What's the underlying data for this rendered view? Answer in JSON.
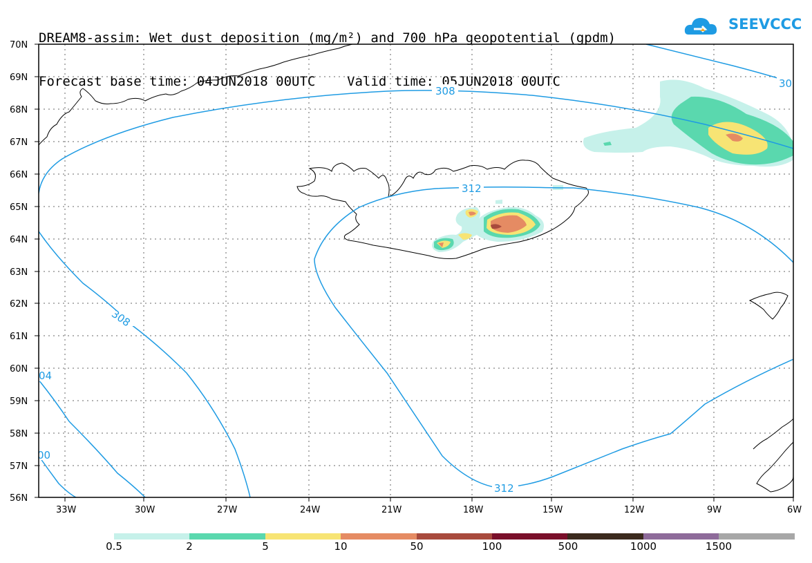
{
  "title": {
    "line1": "DREAM8-assim: Wet dust deposition (mg/m²) and 700 hPa geopotential (gpdm)",
    "line2": "Forecast base time: 04JUN2018 00UTC    Valid time: 05JUN2018 00UTC"
  },
  "logo": {
    "text": "SEEVCCC",
    "icon": "cloud-arrow-icon",
    "color": "#1e9be3"
  },
  "map": {
    "lat_labels": [
      "70N",
      "69N",
      "68N",
      "67N",
      "66N",
      "65N",
      "64N",
      "63N",
      "62N",
      "61N",
      "60N",
      "59N",
      "58N",
      "57N",
      "56N"
    ],
    "lon_labels": [
      "33W",
      "30W",
      "27W",
      "24W",
      "21W",
      "18W",
      "15W",
      "12W",
      "9W",
      "6W"
    ],
    "contour_color": "#1e9be3",
    "contour_labels": [
      "308",
      "312",
      "308",
      "312",
      "30",
      "04",
      "00"
    ]
  },
  "legend": {
    "labels": [
      "0.5",
      "2",
      "5",
      "10",
      "50",
      "100",
      "500",
      "1000",
      "1500"
    ],
    "colors": [
      "#c6f1ea",
      "#5ad8ae",
      "#f7e474",
      "#e58b63",
      "#a84a3d",
      "#7a0f2a",
      "#3b2a1e",
      "#8e6b9a",
      "#a7a7a7"
    ]
  }
}
